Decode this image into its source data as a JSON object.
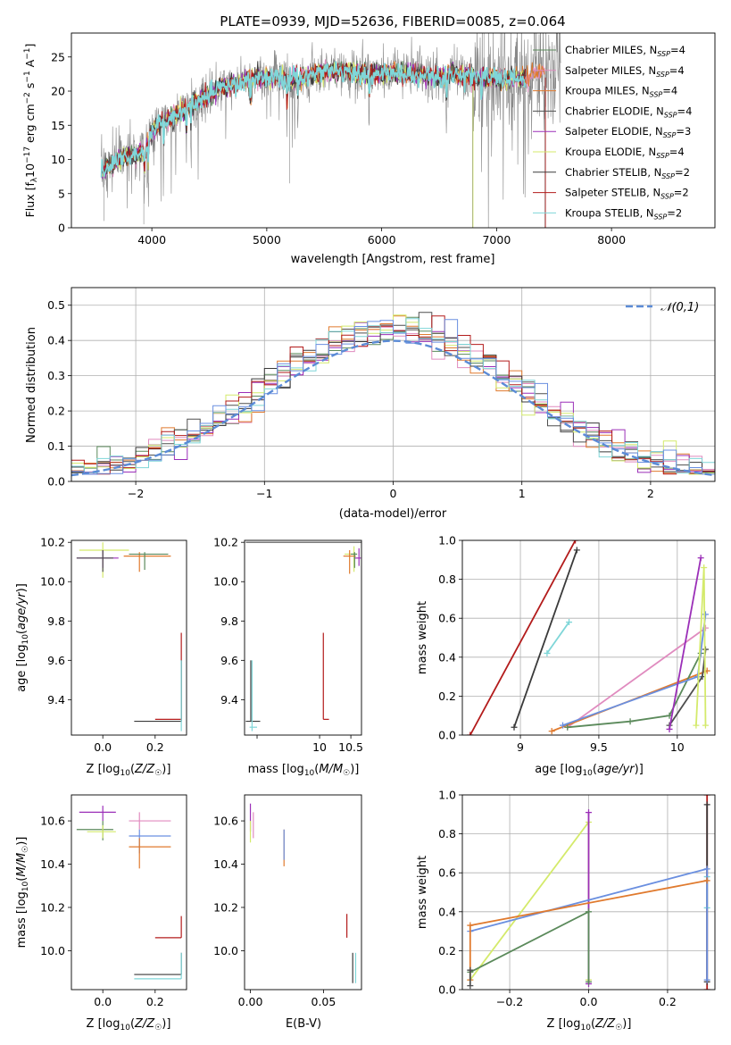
{
  "colors": {
    "grid": "#b0b0b0",
    "Chabrier MILES": "#5b8a5b",
    "Salpeter MILES": "#e08bbf",
    "Kroupa MILES": "#e07a2e",
    "Chabrier ELODIE": "#4f4f4f",
    "Salpeter ELODIE": "#9b2fb8",
    "Kroupa ELODIE": "#d4ea6b",
    "Chabrier STELIB": "#3a3a3a",
    "Salpeter STELIB": "#b31b1b",
    "Kroupa STELIB": "#7fd6d8",
    "gauss": "#5b8bd6",
    "blue": "#6a8fe0",
    "spectrum": "#888888"
  },
  "chart_data": [
    {
      "id": "spectrum",
      "type": "line",
      "title": "PLATE=0939, MJD=52636, FIBERID=0085, z=0.064",
      "xlabel": "wavelength [Angstrom, rest frame]",
      "ylabel": "Flux [f_λ 10⁻¹⁷ erg cm⁻² s⁻¹ A⁻¹]",
      "xlim": [
        3300,
        8900
      ],
      "ylim": [
        0,
        28.5
      ],
      "xticks": [
        4000,
        5000,
        6000,
        7000,
        8000
      ],
      "yticks": [
        0,
        5,
        10,
        15,
        20,
        25
      ],
      "grid": false,
      "legend_position": "right",
      "legend": [
        {
          "label": "Chabrier MILES, N",
          "sub": "SSP",
          "tail": "=4",
          "color": "Chabrier MILES"
        },
        {
          "label": "Salpeter MILES, N",
          "sub": "SSP",
          "tail": "=4",
          "color": "Salpeter MILES"
        },
        {
          "label": "Kroupa MILES, N",
          "sub": "SSP",
          "tail": "=4",
          "color": "Kroupa MILES"
        },
        {
          "label": "Chabrier ELODIE, N",
          "sub": "SSP",
          "tail": "=4",
          "color": "Chabrier ELODIE"
        },
        {
          "label": "Salpeter ELODIE, N",
          "sub": "SSP",
          "tail": "=3",
          "color": "Salpeter ELODIE"
        },
        {
          "label": "Kroupa ELODIE, N",
          "sub": "SSP",
          "tail": "=4",
          "color": "Kroupa ELODIE"
        },
        {
          "label": "Chabrier STELIB, N",
          "sub": "SSP",
          "tail": "=2",
          "color": "Chabrier STELIB"
        },
        {
          "label": "Salpeter STELIB, N",
          "sub": "SSP",
          "tail": "=2",
          "color": "Salpeter STELIB"
        },
        {
          "label": "Kroupa STELIB, N",
          "sub": "SSP",
          "tail": "=2",
          "color": "Kroupa STELIB"
        }
      ],
      "continuum": {
        "x": [
          3560,
          3700,
          3850,
          3950,
          4000,
          4100,
          4200,
          4300,
          4400,
          4500,
          4600,
          4700,
          4800,
          4900,
          5000,
          5100,
          5200,
          5300,
          5400,
          5500,
          5600,
          5700,
          5800,
          5900,
          6000,
          6100,
          6200,
          6300,
          6400,
          6500,
          6600,
          6700,
          6800,
          6900,
          7000,
          7100,
          7200,
          7300,
          7400
        ],
        "y": [
          8,
          10,
          10.5,
          11.5,
          14,
          15.5,
          16.5,
          17.5,
          18.5,
          19.5,
          20.5,
          21,
          21.5,
          21.8,
          22,
          21.8,
          21.5,
          22,
          22.5,
          22.8,
          23,
          22.8,
          22.5,
          22.5,
          22.5,
          22.8,
          22.5,
          22.3,
          22.3,
          22,
          22.5,
          22.2,
          22,
          22,
          22,
          21.8,
          21.8,
          22.5,
          23
        ]
      },
      "model_x_range": [
        3560,
        7250
      ]
    },
    {
      "id": "residuals",
      "type": "line",
      "xlabel": "(data-model)/error",
      "ylabel": "Normed distribution",
      "xlim": [
        -2.5,
        2.5
      ],
      "ylim": [
        0,
        0.55
      ],
      "xticks": [
        -2,
        -1,
        0,
        1,
        2
      ],
      "yticks": [
        0.0,
        0.1,
        0.2,
        0.3,
        0.4,
        0.5
      ],
      "grid": true,
      "legend_position": "top-right",
      "gaussian_legend": "𝒩(0,1)",
      "bin_width": 0.1
    },
    {
      "id": "age-vs-Z",
      "type": "scatter",
      "xlabel": "Z [log₁₀(Z/Z☉)]",
      "ylabel": "age  [log₁₀(age/yr)]",
      "xlim": [
        -0.12,
        0.32
      ],
      "ylim": [
        9.22,
        10.21
      ],
      "xticks": [
        0.0,
        0.2
      ],
      "yticks": [
        9.4,
        9.6,
        9.8,
        10.0,
        10.2
      ]
    },
    {
      "id": "age-vs-mass",
      "type": "scatter",
      "xlabel": "mass [log₁₀(M/M☉)]",
      "ylabel": "",
      "xlim": [
        8.8,
        10.67
      ],
      "ylim": [
        9.22,
        10.21
      ],
      "xticks": [
        9,
        10,
        10.5
      ],
      "xticklabels": [
        "",
        "10",
        "10.5"
      ],
      "yticks": [
        9.4,
        9.6,
        9.8,
        10.0,
        10.2
      ]
    },
    {
      "id": "weight-vs-age",
      "type": "line",
      "xlabel": "age  [log₁₀(age/yr)]",
      "ylabel": "mass weight",
      "xlim": [
        8.63,
        10.24
      ],
      "ylim": [
        0,
        1.0
      ],
      "xticks": [
        9.0,
        9.5,
        10.0
      ],
      "yticks": [
        0.0,
        0.2,
        0.4,
        0.6,
        0.8,
        1.0
      ],
      "grid": true
    },
    {
      "id": "mass-vs-Z",
      "type": "scatter",
      "xlabel": "Z [log₁₀(Z/Z☉)]",
      "ylabel": "mass [log₁₀(M/M☉)]",
      "xlim": [
        -0.12,
        0.32
      ],
      "ylim": [
        9.82,
        10.72
      ],
      "xticks": [
        0.0,
        0.2
      ],
      "yticks": [
        10.0,
        10.2,
        10.4,
        10.6
      ]
    },
    {
      "id": "mass-vs-ebv",
      "type": "scatter",
      "xlabel": "E(B-V)",
      "ylabel": "",
      "xlim": [
        -0.004,
        0.076
      ],
      "ylim": [
        9.82,
        10.72
      ],
      "xticks": [
        0.0,
        0.05
      ],
      "yticks": [
        10.0,
        10.2,
        10.4,
        10.6
      ]
    },
    {
      "id": "weight-vs-Z",
      "type": "line",
      "xlabel": "Z [log₁₀(Z/Z☉)]",
      "ylabel": "mass weight",
      "xlim": [
        -0.32,
        0.32
      ],
      "ylim": [
        0,
        1.0
      ],
      "xticks": [
        -0.2,
        0.0,
        0.2
      ],
      "yticks": [
        0.0,
        0.2,
        0.4,
        0.6,
        0.8,
        1.0
      ],
      "grid": true
    }
  ],
  "age_mass_weights": [
    {
      "name": "Salpeter STELIB",
      "age": [
        8.68,
        9.35
      ],
      "weight": [
        0.0,
        1.0
      ]
    },
    {
      "name": "Chabrier STELIB",
      "age": [
        8.96,
        9.36
      ],
      "weight": [
        0.04,
        0.95
      ]
    },
    {
      "name": "Kroupa STELIB",
      "age": [
        9.17,
        9.31
      ],
      "weight": [
        0.42,
        0.58
      ]
    },
    {
      "name": "Salpeter MILES",
      "age": [
        9.3,
        10.18
      ],
      "weight": [
        0.04,
        0.55
      ]
    },
    {
      "name": "Kroupa MILES",
      "age": [
        9.2,
        10.19
      ],
      "weight": [
        0.02,
        0.33
      ]
    },
    {
      "name": "Chabrier MILES",
      "age": [
        9.3,
        9.7,
        9.95,
        10.15
      ],
      "weight": [
        0.04,
        0.07,
        0.1,
        0.42
      ]
    },
    {
      "name": "Chabrier ELODIE",
      "age": [
        9.95,
        10.16,
        10.18
      ],
      "weight": [
        0.05,
        0.3,
        0.44
      ]
    },
    {
      "name": "blue",
      "age": [
        9.27,
        10.13,
        10.18
      ],
      "weight": [
        0.05,
        0.3,
        0.62
      ]
    },
    {
      "name": "Salpeter ELODIE",
      "age": [
        9.95,
        10.15
      ],
      "weight": [
        0.03,
        0.91
      ]
    },
    {
      "name": "Kroupa ELODIE",
      "age": [
        10.12,
        10.17,
        10.18
      ],
      "weight": [
        0.05,
        0.86,
        0.05
      ]
    }
  ],
  "z_mass_weights": [
    {
      "name": "Salpeter STELIB",
      "Z": [
        0.3,
        0.3
      ],
      "weight": [
        0.0,
        1.0
      ]
    },
    {
      "name": "Chabrier STELIB",
      "Z": [
        0.3,
        0.3
      ],
      "weight": [
        0.04,
        0.95
      ]
    },
    {
      "name": "Kroupa STELIB",
      "Z": [
        0.3,
        0.3
      ],
      "weight": [
        0.42,
        0.58
      ]
    },
    {
      "name": "Kroupa ELODIE",
      "Z": [
        -0.3,
        0.0,
        0.0
      ],
      "weight": [
        0.05,
        0.86,
        0.05
      ]
    },
    {
      "name": "Salpeter ELODIE",
      "Z": [
        0.0,
        0.0
      ],
      "weight": [
        0.03,
        0.91
      ]
    },
    {
      "name": "Chabrier MILES",
      "Z": [
        -0.3,
        0.0,
        0.0
      ],
      "weight": [
        0.09,
        0.4,
        0.04
      ]
    },
    {
      "name": "blue",
      "Z": [
        -0.3,
        0.3,
        0.3
      ],
      "weight": [
        0.3,
        0.62,
        0.05
      ]
    },
    {
      "name": "Kroupa MILES",
      "Z": [
        -0.3,
        -0.3,
        0.3
      ],
      "weight": [
        0.05,
        0.33,
        0.56
      ]
    },
    {
      "name": "Chabrier ELODIE",
      "Z": [
        -0.3,
        -0.3
      ],
      "weight": [
        0.02,
        0.1
      ]
    }
  ],
  "age_Z_points": [
    {
      "name": "Kroupa ELODIE",
      "Z": [
        0.0,
        -0.09,
        0.1
      ],
      "age": [
        10.16,
        10.02,
        10.2
      ]
    },
    {
      "name": "Salpeter ELODIE",
      "Z": [
        0.0,
        -0.1,
        0.06
      ],
      "age": [
        10.12,
        10.07,
        10.16
      ]
    },
    {
      "name": "Chabrier ELODIE",
      "Z": [
        0.0,
        -0.1,
        0.04
      ],
      "age": [
        10.12,
        10.05,
        10.16
      ]
    },
    {
      "name": "Kroupa MILES",
      "Z": [
        0.14,
        0.08,
        0.26
      ],
      "age": [
        10.13,
        10.05,
        10.15
      ]
    },
    {
      "name": "Chabrier MILES",
      "Z": [
        0.16,
        0.1,
        0.25
      ],
      "age": [
        10.14,
        10.06,
        10.15
      ]
    },
    {
      "name": "Salpeter STELIB",
      "Z": [
        0.3,
        0.2,
        0.3
      ],
      "age": [
        9.3,
        9.3,
        9.74
      ]
    },
    {
      "name": "Chabrier STELIB",
      "Z": [
        0.3,
        0.12,
        0.3
      ],
      "age": [
        9.29,
        9.29,
        9.6
      ]
    },
    {
      "name": "Kroupa STELIB",
      "Z": [
        0.3,
        0.3,
        0.3
      ],
      "age": [
        9.26,
        9.24,
        9.6
      ]
    }
  ],
  "age_mass_points": [
    {
      "name": "Kroupa ELODIE",
      "mass": [
        10.55,
        10.4,
        10.6
      ],
      "age": [
        10.14,
        10.05,
        10.18
      ]
    },
    {
      "name": "Salpeter ELODIE",
      "mass": [
        10.63,
        10.55,
        10.66
      ],
      "age": [
        10.12,
        10.08,
        10.17
      ]
    },
    {
      "name": "Kroupa MILES",
      "mass": [
        10.48,
        10.38,
        10.58
      ],
      "age": [
        10.13,
        10.04,
        10.16
      ]
    },
    {
      "name": "Chabrier MILES",
      "mass": [
        10.56,
        10.5,
        10.6
      ],
      "age": [
        10.14,
        10.07,
        10.15
      ]
    },
    {
      "name": "Salpeter STELIB",
      "mass": [
        10.06,
        10.06,
        10.15
      ],
      "age": [
        9.3,
        9.3,
        9.74
      ]
    },
    {
      "name": "Chabrier STELIB",
      "mass": [
        8.9,
        8.82,
        9.05
      ],
      "age": [
        9.29,
        9.29,
        9.6
      ]
    },
    {
      "name": "Kroupa STELIB",
      "mass": [
        8.92,
        8.88,
        9.0
      ],
      "age": [
        9.26,
        9.24,
        9.6
      ]
    },
    {
      "name": "Chabrier ELODIE",
      "mass": [
        8.82,
        8.82,
        10.67
      ],
      "age": [
        10.2,
        10.2,
        10.2
      ]
    }
  ],
  "mass_Z_points": [
    {
      "name": "Salpeter ELODIE",
      "Z": [
        0.0,
        -0.09,
        0.05
      ],
      "mass": [
        10.64,
        10.6,
        10.67
      ]
    },
    {
      "name": "Salpeter MILES",
      "Z": [
        0.14,
        0.1,
        0.26
      ],
      "mass": [
        10.6,
        10.56,
        10.64
      ]
    },
    {
      "name": "Chabrier MILES",
      "Z": [
        0.0,
        -0.1,
        0.04
      ],
      "mass": [
        10.56,
        10.51,
        10.6
      ]
    },
    {
      "name": "Kroupa ELODIE",
      "Z": [
        0.0,
        -0.06,
        0.05
      ],
      "mass": [
        10.55,
        10.52,
        10.58
      ]
    },
    {
      "name": "blue",
      "Z": [
        0.14,
        0.1,
        0.26
      ],
      "mass": [
        10.53,
        10.45,
        10.56
      ]
    },
    {
      "name": "Kroupa MILES",
      "Z": [
        0.14,
        0.1,
        0.26
      ],
      "mass": [
        10.48,
        10.38,
        10.52
      ]
    },
    {
      "name": "Salpeter STELIB",
      "Z": [
        0.3,
        0.2,
        0.3
      ],
      "mass": [
        10.06,
        10.06,
        10.16
      ]
    },
    {
      "name": "Chabrier STELIB",
      "Z": [
        0.3,
        0.12,
        0.3
      ],
      "mass": [
        9.89,
        9.89,
        9.99
      ]
    },
    {
      "name": "Kroupa STELIB",
      "Z": [
        0.3,
        0.12,
        0.3
      ],
      "mass": [
        9.87,
        9.87,
        9.99
      ]
    }
  ],
  "mass_ebv_points": [
    {
      "name": "Salpeter ELODIE",
      "ebv": [
        0.0,
        0.0,
        0.0
      ],
      "mass": [
        10.63,
        10.55,
        10.68
      ]
    },
    {
      "name": "Salpeter MILES",
      "ebv": [
        0.002,
        0.002,
        0.002
      ],
      "mass": [
        10.6,
        10.52,
        10.64
      ]
    },
    {
      "name": "Kroupa ELODIE",
      "ebv": [
        0.0,
        0.0,
        0.0
      ],
      "mass": [
        10.55,
        10.5,
        10.6
      ]
    },
    {
      "name": "Kroupa MILES",
      "ebv": [
        0.023,
        0.023,
        0.023
      ],
      "mass": [
        10.48,
        10.39,
        10.56
      ]
    },
    {
      "name": "blue",
      "ebv": [
        0.023,
        0.023,
        0.023
      ],
      "mass": [
        10.5,
        10.42,
        10.56
      ]
    },
    {
      "name": "Salpeter STELIB",
      "ebv": [
        0.066,
        0.066,
        0.066
      ],
      "mass": [
        10.06,
        10.06,
        10.17
      ]
    },
    {
      "name": "Chabrier STELIB",
      "ebv": [
        0.07,
        0.07,
        0.07
      ],
      "mass": [
        9.89,
        9.85,
        9.99
      ]
    },
    {
      "name": "Kroupa STELIB",
      "ebv": [
        0.072,
        0.072,
        0.072
      ],
      "mass": [
        9.87,
        9.85,
        9.99
      ]
    }
  ]
}
